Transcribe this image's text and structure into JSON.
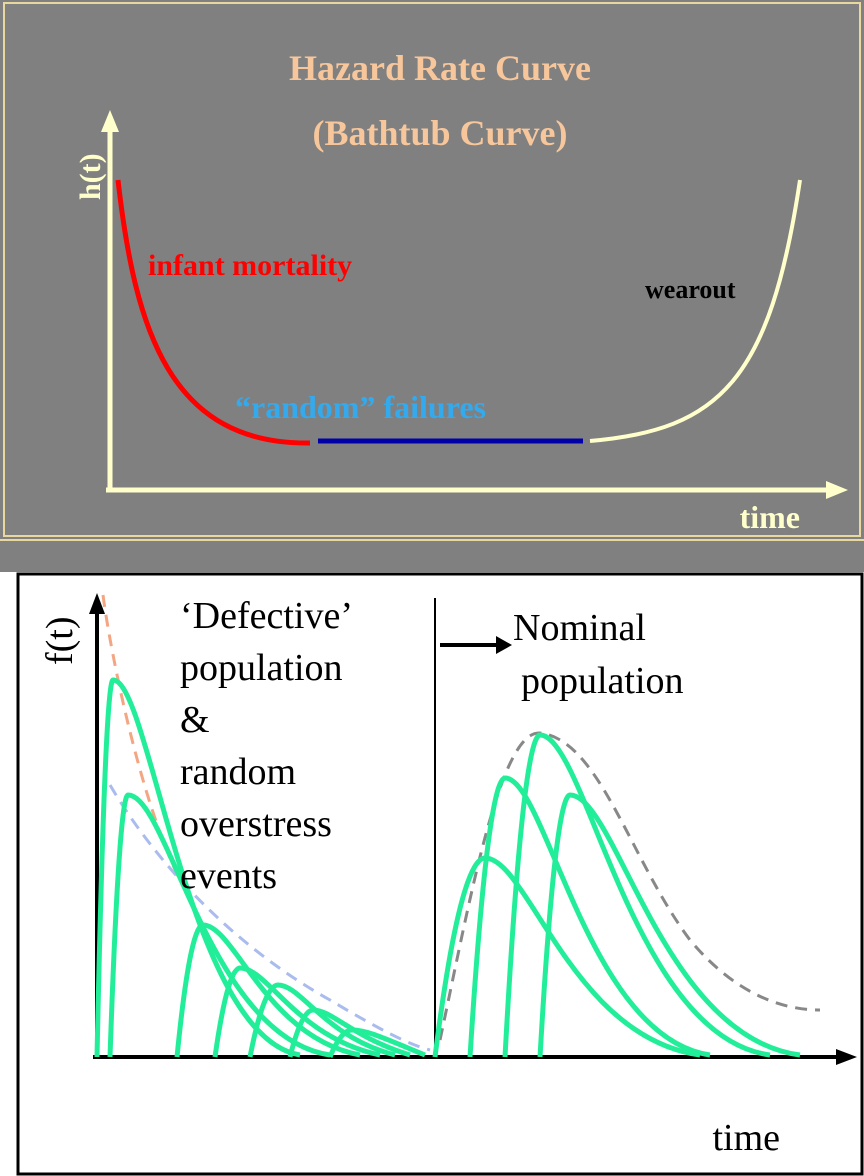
{
  "top_panel": {
    "title_line1": "Hazard Rate Curve",
    "title_line2": "(Bathtub Curve)",
    "y_axis_label": "h(t)",
    "x_axis_label": "time",
    "infant_mortality": "infant mortality",
    "random_failures": "“random” failures",
    "wearout": "wearout"
  },
  "bottom_panel": {
    "y_axis_label": "f(t)",
    "x_axis_label": "time",
    "defective_text": [
      "‘Defective’",
      "population",
      "&",
      "random",
      "overstress",
      "events"
    ],
    "nominal_text": [
      "Nominal",
      "population"
    ]
  }
}
